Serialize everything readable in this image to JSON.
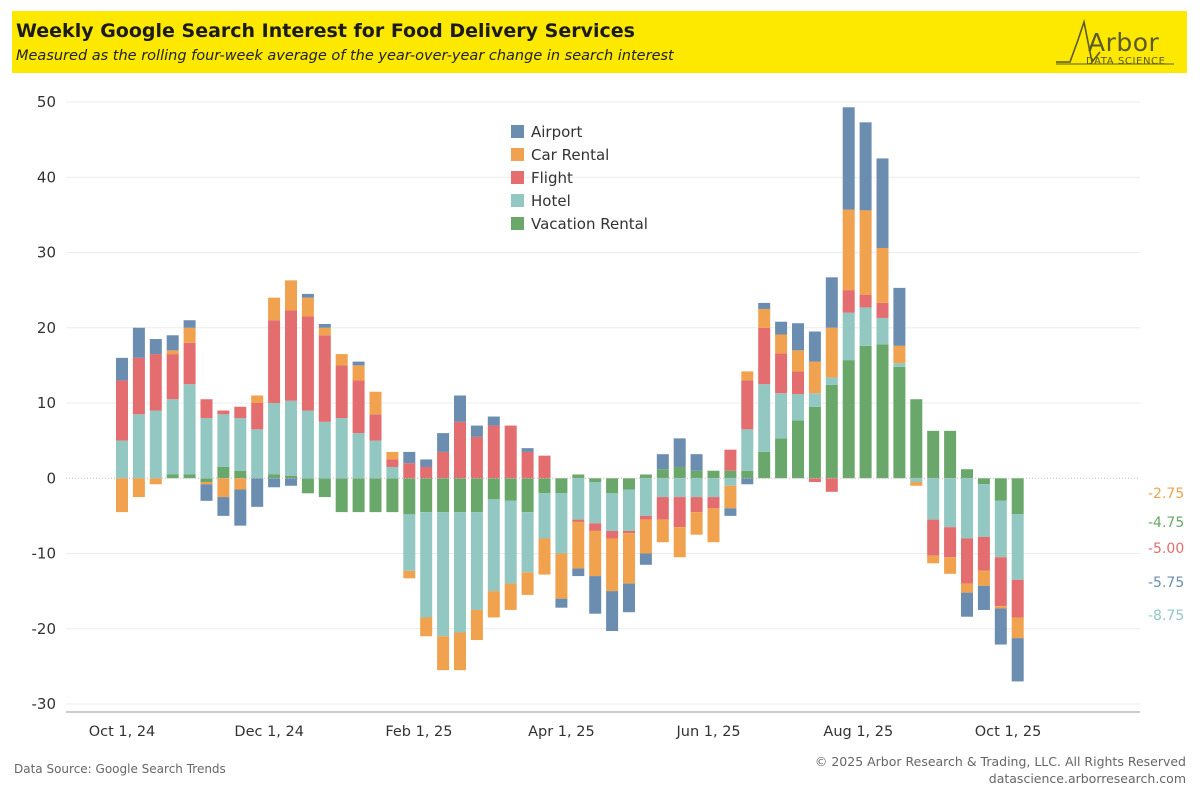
{
  "header": {
    "title": "Weekly Google Search Interest for Food Delivery Services",
    "subtitle": "Measured as the rolling four-week average of the year-over-year change in search interest"
  },
  "logo": {
    "word": "Arbor",
    "sub": "DATA SCIENCE"
  },
  "footer": {
    "source": "Data Source: Google Search Trends",
    "copyright": "© 2025 Arbor Research & Trading, LLC. All Rights Reserved",
    "url": "datascience.arborresearch.com"
  },
  "colors": {
    "Airport": "#6b8db0",
    "Car Rental": "#f0a24f",
    "Flight": "#e46d70",
    "Hotel": "#92c7c2",
    "Vacation Rental": "#6aa76a",
    "banner": "#fde800"
  },
  "chart_data": {
    "type": "bar",
    "stacked": true,
    "ylim": [
      -30,
      50
    ],
    "yticks": [
      50,
      40,
      30,
      20,
      10,
      0,
      -10,
      -20,
      -30
    ],
    "x_tick_labels": [
      "Oct 1, 24",
      "Dec 1, 24",
      "Feb 1, 25",
      "Apr 1, 25",
      "Jun 1, 25",
      "Aug 1, 25",
      "Oct 1, 25"
    ],
    "x_tick_positions": [
      0,
      8.71,
      17.57,
      26,
      34.71,
      43.57,
      52.43
    ],
    "grid": true,
    "legend_position": "top-center",
    "series_order": [
      "Vacation Rental",
      "Hotel",
      "Flight",
      "Car Rental",
      "Airport"
    ],
    "legend_order": [
      "Airport",
      "Car Rental",
      "Flight",
      "Hotel",
      "Vacation Rental"
    ],
    "bars": [
      {
        "Vacation Rental": 0,
        "Hotel": 5,
        "Flight": 8,
        "Car Rental": -4.5,
        "Airport": 3
      },
      {
        "Vacation Rental": 0,
        "Hotel": 8.5,
        "Flight": 7.5,
        "Car Rental": -2.5,
        "Airport": 4
      },
      {
        "Vacation Rental": 0,
        "Hotel": 9,
        "Flight": 7.5,
        "Car Rental": -0.8,
        "Airport": 2
      },
      {
        "Vacation Rental": 0.5,
        "Hotel": 10,
        "Flight": 6,
        "Car Rental": 0.5,
        "Airport": 2
      },
      {
        "Vacation Rental": 0.5,
        "Hotel": 12,
        "Flight": 5.5,
        "Car Rental": 2,
        "Airport": 1
      },
      {
        "Vacation Rental": -0.5,
        "Hotel": 8,
        "Flight": 2.5,
        "Car Rental": -0.3,
        "Airport": -2.2
      },
      {
        "Vacation Rental": 1.5,
        "Hotel": 7,
        "Flight": 0.5,
        "Car Rental": -2.5,
        "Airport": -2.5
      },
      {
        "Vacation Rental": 1,
        "Hotel": 7,
        "Flight": 1.5,
        "Car Rental": -1.5,
        "Airport": -4.8
      },
      {
        "Vacation Rental": 0,
        "Hotel": 6.5,
        "Flight": 3.5,
        "Car Rental": 1,
        "Airport": -3.8
      },
      {
        "Vacation Rental": 0.5,
        "Hotel": 9.5,
        "Flight": 11,
        "Car Rental": 3,
        "Airport": -1.2
      },
      {
        "Vacation Rental": 0.3,
        "Hotel": 10,
        "Flight": 12,
        "Car Rental": 4,
        "Airport": -1
      },
      {
        "Vacation Rental": -2,
        "Hotel": 9,
        "Flight": 12.5,
        "Car Rental": 2.5,
        "Airport": 0.5
      },
      {
        "Vacation Rental": -2.5,
        "Hotel": 7.5,
        "Flight": 11.5,
        "Car Rental": 1,
        "Airport": 0.5
      },
      {
        "Vacation Rental": -4.5,
        "Hotel": 8,
        "Flight": 7,
        "Car Rental": 1.5,
        "Airport": 0
      },
      {
        "Vacation Rental": -4.5,
        "Hotel": 6,
        "Flight": 7,
        "Car Rental": 2,
        "Airport": 0.5
      },
      {
        "Vacation Rental": -4.5,
        "Hotel": 5,
        "Flight": 3.5,
        "Car Rental": 3,
        "Airport": 0
      },
      {
        "Vacation Rental": -4.5,
        "Hotel": 1.5,
        "Flight": 1,
        "Car Rental": 1,
        "Airport": 0
      },
      {
        "Vacation Rental": -4.8,
        "Hotel": -7.5,
        "Flight": 2,
        "Car Rental": -1,
        "Airport": 1.5
      },
      {
        "Vacation Rental": -4.5,
        "Hotel": -14,
        "Flight": 1.5,
        "Car Rental": -2.5,
        "Airport": 1
      },
      {
        "Vacation Rental": -4.5,
        "Hotel": -16.5,
        "Flight": 3.5,
        "Car Rental": -4.5,
        "Airport": 2.5
      },
      {
        "Vacation Rental": -4.5,
        "Hotel": -16,
        "Flight": 7.5,
        "Car Rental": -5,
        "Airport": 3.5
      },
      {
        "Vacation Rental": -4.5,
        "Hotel": -13,
        "Flight": 5.5,
        "Car Rental": -4,
        "Airport": 1.5
      },
      {
        "Vacation Rental": -2.8,
        "Hotel": -12.2,
        "Flight": 7,
        "Car Rental": -3.5,
        "Airport": 1.2
      },
      {
        "Vacation Rental": -3,
        "Hotel": -11,
        "Flight": 7,
        "Car Rental": -3.5,
        "Airport": 0
      },
      {
        "Vacation Rental": -4.5,
        "Hotel": -8,
        "Flight": 3.5,
        "Car Rental": -3,
        "Airport": 0.5
      },
      {
        "Vacation Rental": -2,
        "Hotel": -6,
        "Flight": 3,
        "Car Rental": -4.8,
        "Airport": 0
      },
      {
        "Vacation Rental": -2,
        "Hotel": -8,
        "Flight": 0,
        "Car Rental": -6,
        "Airport": -1.2
      },
      {
        "Vacation Rental": 0.5,
        "Hotel": -5.5,
        "Flight": -0.3,
        "Car Rental": -6.2,
        "Airport": -1
      },
      {
        "Vacation Rental": -0.5,
        "Hotel": -5.5,
        "Flight": -1,
        "Car Rental": -6,
        "Airport": -5
      },
      {
        "Vacation Rental": -2,
        "Hotel": -5,
        "Flight": -1,
        "Car Rental": -7,
        "Airport": -5.3
      },
      {
        "Vacation Rental": -1.5,
        "Hotel": -5.5,
        "Flight": -0.3,
        "Car Rental": -6.7,
        "Airport": -3.8
      },
      {
        "Vacation Rental": 0.5,
        "Hotel": -5,
        "Flight": -0.5,
        "Car Rental": -4.5,
        "Airport": -1.5
      },
      {
        "Vacation Rental": 1.2,
        "Hotel": -2.5,
        "Flight": -3,
        "Car Rental": -3,
        "Airport": 2
      },
      {
        "Vacation Rental": 1.5,
        "Hotel": -2.5,
        "Flight": -4,
        "Car Rental": -4,
        "Airport": 3.8
      },
      {
        "Vacation Rental": 1,
        "Hotel": -2.5,
        "Flight": -2,
        "Car Rental": -3,
        "Airport": 2.2
      },
      {
        "Vacation Rental": 1,
        "Hotel": -2.5,
        "Flight": -1.5,
        "Car Rental": -4.5,
        "Airport": 0
      },
      {
        "Vacation Rental": 1,
        "Hotel": -1,
        "Flight": 2.8,
        "Car Rental": -3,
        "Airport": -1
      },
      {
        "Vacation Rental": 1,
        "Hotel": 5.5,
        "Flight": 6.5,
        "Car Rental": 1.2,
        "Airport": -0.8
      },
      {
        "Vacation Rental": 3.5,
        "Hotel": 9,
        "Flight": 7.5,
        "Car Rental": 2.5,
        "Airport": 0.8
      },
      {
        "Vacation Rental": 5.3,
        "Hotel": 6,
        "Flight": 5.3,
        "Car Rental": 2.5,
        "Airport": 1.7
      },
      {
        "Vacation Rental": 7.7,
        "Hotel": 3.5,
        "Flight": 3,
        "Car Rental": 2.8,
        "Airport": 3.6
      },
      {
        "Vacation Rental": 9.5,
        "Hotel": 1.8,
        "Flight": -0.5,
        "Car Rental": 4.2,
        "Airport": 4
      },
      {
        "Vacation Rental": 12.4,
        "Hotel": 1,
        "Flight": -1.8,
        "Car Rental": 6.6,
        "Airport": 6.7
      },
      {
        "Vacation Rental": 15.7,
        "Hotel": 6.3,
        "Flight": 3,
        "Car Rental": 10.7,
        "Airport": 13.6
      },
      {
        "Vacation Rental": 17.6,
        "Hotel": 5.1,
        "Flight": 1.7,
        "Car Rental": 11.2,
        "Airport": 11.7
      },
      {
        "Vacation Rental": 17.8,
        "Hotel": 3.5,
        "Flight": 2,
        "Car Rental": 7.3,
        "Airport": 11.9
      },
      {
        "Vacation Rental": 14.8,
        "Hotel": 0.5,
        "Flight": 0,
        "Car Rental": 2.3,
        "Airport": 7.7
      },
      {
        "Vacation Rental": 10.5,
        "Hotel": -0.5,
        "Flight": 0,
        "Car Rental": -0.5,
        "Airport": 0
      },
      {
        "Vacation Rental": 6.3,
        "Hotel": -5.5,
        "Flight": -4.8,
        "Car Rental": -1,
        "Airport": 0
      },
      {
        "Vacation Rental": 6.3,
        "Hotel": -6.5,
        "Flight": -4,
        "Car Rental": -2.2,
        "Airport": 0
      },
      {
        "Vacation Rental": 1.2,
        "Hotel": -8,
        "Flight": -6,
        "Car Rental": -1.2,
        "Airport": -3.2
      },
      {
        "Vacation Rental": -0.8,
        "Hotel": -7,
        "Flight": -4.5,
        "Car Rental": -2,
        "Airport": -3.2
      },
      {
        "Vacation Rental": -3,
        "Hotel": -7.5,
        "Flight": -6.5,
        "Car Rental": -0.3,
        "Airport": -4.8
      },
      {
        "Vacation Rental": -4.75,
        "Hotel": -8.75,
        "Flight": -5,
        "Car Rental": -2.75,
        "Airport": -5.75
      }
    ],
    "end_labels": [
      {
        "series": "Car Rental",
        "text": "-2.75"
      },
      {
        "series": "Vacation Rental",
        "text": "-4.75"
      },
      {
        "series": "Flight",
        "text": "-5.00"
      },
      {
        "series": "Airport",
        "text": "-5.75"
      },
      {
        "series": "Hotel",
        "text": "-8.75"
      }
    ]
  }
}
